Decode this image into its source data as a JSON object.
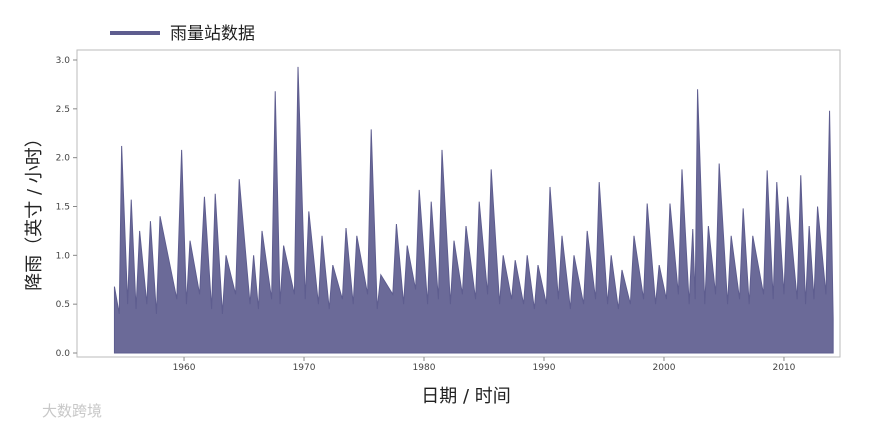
{
  "chart_data": {
    "type": "area",
    "legend": "雨量站数据",
    "xlabel": "日期 / 时间",
    "ylabel": "降雨（英寸 / 小时）",
    "watermark": "大数跨境",
    "x": [
      1954.2,
      1954.6,
      1954.8,
      1955.3,
      1955.6,
      1956.0,
      1956.3,
      1956.9,
      1957.2,
      1957.7,
      1958.0,
      1959.4,
      1959.8,
      1960.2,
      1960.5,
      1961.3,
      1961.7,
      1962.3,
      1962.6,
      1963.2,
      1963.5,
      1964.3,
      1964.6,
      1965.5,
      1965.8,
      1966.2,
      1966.5,
      1967.3,
      1967.6,
      1968.0,
      1968.3,
      1969.2,
      1969.5,
      1970.1,
      1970.4,
      1971.2,
      1971.5,
      1972.1,
      1972.4,
      1973.2,
      1973.5,
      1974.1,
      1974.4,
      1975.3,
      1975.6,
      1976.1,
      1976.4,
      1977.4,
      1977.7,
      1978.3,
      1978.6,
      1979.3,
      1979.6,
      1980.3,
      1980.6,
      1981.2,
      1981.5,
      1982.2,
      1982.5,
      1983.2,
      1983.5,
      1984.3,
      1984.6,
      1985.3,
      1985.6,
      1986.3,
      1986.6,
      1987.3,
      1987.6,
      1988.3,
      1988.6,
      1989.2,
      1989.5,
      1990.2,
      1990.5,
      1991.2,
      1991.5,
      1992.2,
      1992.5,
      1993.3,
      1993.6,
      1994.3,
      1994.6,
      1995.3,
      1995.6,
      1996.2,
      1996.5,
      1997.2,
      1997.5,
      1998.3,
      1998.6,
      1999.3,
      1999.6,
      2000.2,
      2000.5,
      2001.2,
      2001.5,
      2002.1,
      2002.4,
      2002.6,
      2002.8,
      2003.4,
      2003.7,
      2004.3,
      2004.6,
      2005.3,
      2005.6,
      2006.3,
      2006.6,
      2007.1,
      2007.4,
      2008.3,
      2008.6,
      2009.1,
      2009.4,
      2010.0,
      2010.3,
      2011.1,
      2011.4,
      2011.8,
      2012.1,
      2012.5,
      2012.8,
      2013.5,
      2013.8,
      2014.1
    ],
    "series": [
      {
        "name": "雨量站数据",
        "color": "#5e5d8f",
        "values": [
          0.68,
          0.4,
          2.12,
          0.5,
          1.57,
          0.45,
          1.25,
          0.5,
          1.35,
          0.4,
          1.4,
          0.55,
          2.08,
          0.5,
          1.15,
          0.6,
          1.6,
          0.45,
          1.63,
          0.4,
          1.0,
          0.6,
          1.78,
          0.5,
          1.0,
          0.45,
          1.25,
          0.55,
          2.68,
          0.5,
          1.1,
          0.6,
          2.93,
          0.55,
          1.45,
          0.5,
          1.2,
          0.45,
          0.9,
          0.55,
          1.28,
          0.5,
          1.2,
          0.6,
          2.29,
          0.45,
          0.8,
          0.6,
          1.32,
          0.5,
          1.1,
          0.65,
          1.67,
          0.5,
          1.55,
          0.55,
          2.08,
          0.5,
          1.15,
          0.6,
          1.3,
          0.55,
          1.55,
          0.6,
          1.88,
          0.5,
          1.0,
          0.55,
          0.95,
          0.5,
          1.0,
          0.45,
          0.9,
          0.5,
          1.7,
          0.55,
          1.2,
          0.45,
          1.0,
          0.5,
          1.25,
          0.55,
          1.75,
          0.5,
          1.0,
          0.45,
          0.85,
          0.5,
          1.2,
          0.55,
          1.53,
          0.5,
          0.9,
          0.55,
          1.53,
          0.6,
          1.88,
          0.5,
          1.27,
          0.55,
          2.7,
          0.5,
          1.3,
          0.6,
          1.94,
          0.5,
          1.2,
          0.55,
          1.48,
          0.5,
          1.2,
          0.6,
          1.87,
          0.55,
          1.75,
          0.6,
          1.6,
          0.55,
          1.82,
          0.5,
          1.3,
          0.55,
          1.5,
          0.6,
          2.48,
          0.35
        ]
      }
    ],
    "xlim": [
      1951.08,
      2014.67
    ],
    "xticks": [
      1960,
      1970,
      1980,
      1990,
      2000,
      2010
    ],
    "ylim": [
      0,
      3
    ],
    "yticks": [
      {
        "value": 0,
        "label": "0.0"
      },
      0.5,
      {
        "value": 1,
        "label": "1.0"
      },
      1.5,
      {
        "value": 2,
        "label": "2.0"
      },
      2.5,
      {
        "value": 3,
        "label": "3.0"
      }
    ]
  }
}
